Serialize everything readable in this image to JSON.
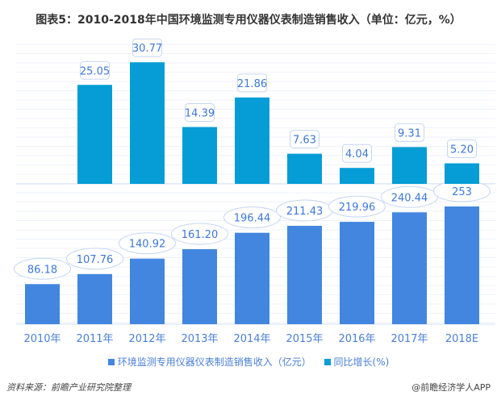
{
  "title": "图表5：2010-2018年中国环境监测专用仪器仪表制造销售收入（单位：亿元，%）",
  "chart_data": {
    "type": "bar",
    "title": "图表5：2010-2018年中国环境监测专用仪器仪表制造销售收入（单位：亿元，%）",
    "categories": [
      "2010年",
      "2011年",
      "2012年",
      "2013年",
      "2014年",
      "2015年",
      "2016年",
      "2017年",
      "2018E"
    ],
    "series": [
      {
        "name": "环境监测专用仪器仪表制造销售收入（亿元）",
        "values": [
          86.18,
          107.76,
          140.92,
          161.2,
          196.44,
          211.43,
          219.96,
          240.44,
          253
        ],
        "labels": [
          "86.18",
          "107.76",
          "140.92",
          "161.20",
          "196.44",
          "211.43",
          "219.96",
          "240.44",
          "253"
        ],
        "color": "#4286e0"
      },
      {
        "name": "同比增长(%)",
        "values": [
          null,
          25.05,
          30.77,
          14.39,
          21.86,
          7.63,
          4.04,
          9.31,
          5.2
        ],
        "labels": [
          "",
          "25.05",
          "30.77",
          "14.39",
          "21.86",
          "7.63",
          "4.04",
          "9.31",
          "5.20"
        ],
        "color": "#069dd6"
      }
    ],
    "legend": "bottom",
    "grid": true
  },
  "source": "资料来源：前瞻产业研究院整理",
  "brand": "@前瞻经济学人APP"
}
